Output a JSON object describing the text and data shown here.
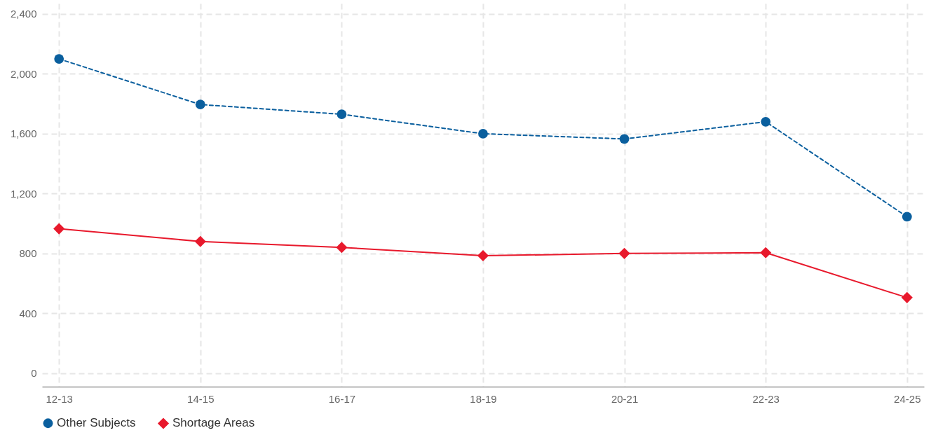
{
  "chart_data": {
    "type": "line",
    "categories": [
      "12-13",
      "14-15",
      "16-17",
      "18-19",
      "20-21",
      "22-23",
      "24-25"
    ],
    "series": [
      {
        "name": "Other Subjects",
        "color": "#0a5f9e",
        "marker": "circle",
        "line_style": "dashed",
        "values": [
          2100,
          1795,
          1730,
          1600,
          1565,
          1680,
          1045
        ]
      },
      {
        "name": "Shortage Areas",
        "color": "#e8192c",
        "marker": "diamond",
        "line_style": "solid",
        "values": [
          965,
          880,
          840,
          785,
          800,
          805,
          505
        ]
      }
    ],
    "ylim": [
      -90,
      2470
    ],
    "yticks": [
      {
        "value": 0,
        "label": "0"
      },
      {
        "value": 400,
        "label": "400"
      },
      {
        "value": 800,
        "label": "800"
      },
      {
        "value": 1200,
        "label": "1,200"
      },
      {
        "value": 1600,
        "label": "1,600"
      },
      {
        "value": 2000,
        "label": "2,000"
      },
      {
        "value": 2400,
        "label": "2,400"
      }
    ],
    "grid": true,
    "legend": "bottom"
  }
}
